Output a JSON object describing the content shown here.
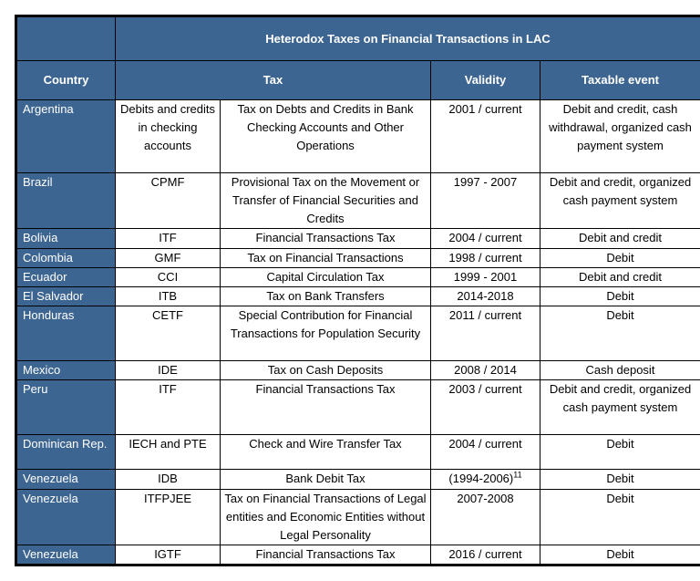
{
  "table": {
    "title": "Heterodox Taxes on Financial Transactions in LAC",
    "headers": {
      "country": "Country",
      "tax": "Tax",
      "validity": "Validity",
      "taxable_event": "Taxable event"
    },
    "rows": [
      {
        "country": "Argentina",
        "tax_abbr": "Debits and credits in checking accounts",
        "tax_name": "Tax on Debts and Credits in Bank Checking Accounts and Other Operations",
        "validity": "2001 / current",
        "taxable_event": "Debit and credit, cash withdrawal, organized cash payment system"
      },
      {
        "country": "Brazil",
        "tax_abbr": "CPMF",
        "tax_name": "Provisional Tax on the Movement or Transfer of Financial Securities and Credits",
        "validity": "1997 - 2007",
        "taxable_event": "Debit and credit, organized cash payment system"
      },
      {
        "country": "Bolivia",
        "tax_abbr": "ITF",
        "tax_name": "Financial Transactions Tax",
        "validity": "2004 / current",
        "taxable_event": "Debit and credit"
      },
      {
        "country": "Colombia",
        "tax_abbr": "GMF",
        "tax_name": "Tax on Financial Transactions",
        "validity": "1998 / current",
        "taxable_event": "Debit"
      },
      {
        "country": "Ecuador",
        "tax_abbr": "CCI",
        "tax_name": "Capital Circulation Tax",
        "validity": "1999 - 2001",
        "taxable_event": "Debit and credit"
      },
      {
        "country": "El Salvador",
        "tax_abbr": "ITB",
        "tax_name": "Tax on Bank Transfers",
        "validity": "2014-2018",
        "taxable_event": "Debit"
      },
      {
        "country": "Honduras",
        "tax_abbr": "CETF",
        "tax_name": "Special Contribution for Financial Transactions for Population Security",
        "validity": "2011 / current",
        "taxable_event": "Debit"
      },
      {
        "country": "Mexico",
        "tax_abbr": "IDE",
        "tax_name": "Tax on Cash Deposits",
        "validity": "2008 / 2014",
        "taxable_event": "Cash deposit"
      },
      {
        "country": "Peru",
        "tax_abbr": "ITF",
        "tax_name": "Financial Transactions Tax",
        "validity": "2003 / current",
        "taxable_event": "Debit and credit, organized cash payment system"
      },
      {
        "country": "Dominican Rep.",
        "tax_abbr": "IECH and PTE",
        "tax_name": "Check and Wire Transfer Tax",
        "validity": "2004 / current",
        "taxable_event": "Debit"
      },
      {
        "country": "Venezuela",
        "tax_abbr": "IDB",
        "tax_name": "Bank Debit Tax",
        "validity": "(1994-2006)",
        "validity_sup": "11",
        "taxable_event": "Debit"
      },
      {
        "country": "Venezuela",
        "tax_abbr": "ITFPJEE",
        "tax_name": "Tax on Financial Transactions of Legal entities and Economic Entities without Legal Personality",
        "validity": "2007-2008",
        "taxable_event": "Debit"
      },
      {
        "country": "Venezuela",
        "tax_abbr": "IGTF",
        "tax_name": "Financial Transactions Tax",
        "validity": "2016 / current",
        "taxable_event": "Debit"
      }
    ]
  },
  "colors": {
    "header_blue": "#3D6591",
    "header_text": "#FFFFFF",
    "body_bg": "#FFFFFF",
    "body_text": "#000000",
    "border": "#000000"
  }
}
